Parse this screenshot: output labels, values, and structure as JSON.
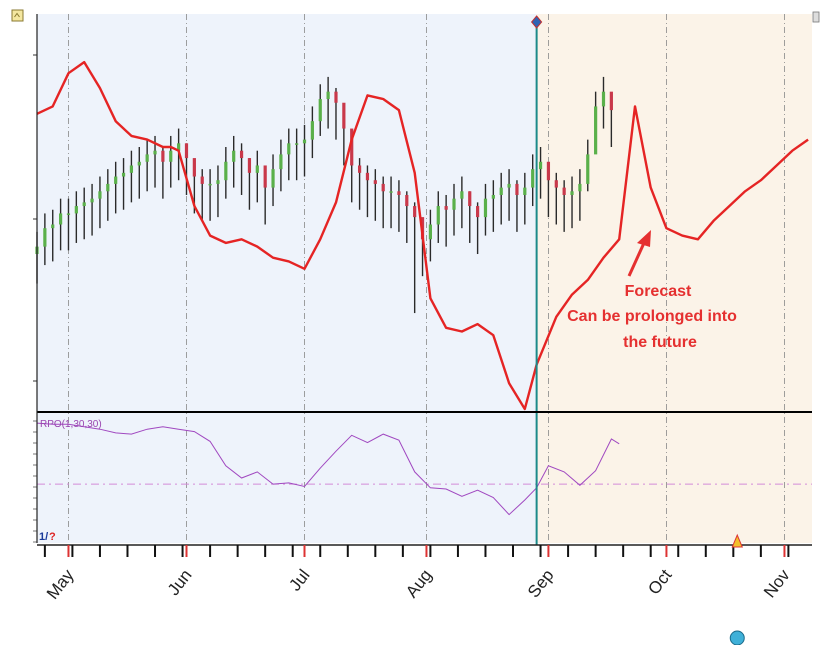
{
  "colors": {
    "history_bg": "#eef3fb",
    "forecast_bg": "#fbf3e8",
    "price_up": "#5ab04a",
    "price_down": "#c9384a",
    "forecast_line": "#e52424",
    "indicator_line": "#a048c0",
    "divider": "#1b8a8a",
    "annotation": "#e53030"
  },
  "annotation": {
    "line1": "Forecast",
    "line2": "Can be prolonged into",
    "line3": "the future"
  },
  "indicator": {
    "label": "RPO(1,30,30)",
    "status_left": "1/",
    "status_right": "?"
  },
  "chart_data": {
    "type": "line",
    "title": "",
    "xlabel": "",
    "ylabel": "",
    "x_unit": "day index (0 = first visible trading day, about Apr 20)",
    "month_labels": [
      "May",
      "Jun",
      "Jul",
      "Aug",
      "Sep",
      "Oct",
      "Nov"
    ],
    "month_positions": [
      8,
      38,
      68,
      99,
      130,
      160,
      190
    ],
    "xlim": [
      0,
      197
    ],
    "history_end": 127,
    "main_ylim": [
      0,
      100
    ],
    "price_bars": {
      "x": [
        0,
        2,
        4,
        6,
        8,
        10,
        12,
        14,
        16,
        18,
        20,
        22,
        24,
        26,
        28,
        30,
        32,
        34,
        36,
        38,
        40,
        42,
        44,
        46,
        48,
        50,
        52,
        54,
        56,
        58,
        60,
        62,
        64,
        66,
        68,
        70,
        72,
        74,
        76,
        78,
        80,
        82,
        84,
        86,
        88,
        90,
        92,
        94,
        96,
        98,
        100,
        102,
        104,
        106,
        108,
        110,
        112,
        114,
        116,
        118,
        120,
        122,
        124,
        126,
        128,
        130,
        132,
        134,
        136,
        138,
        140,
        142,
        144,
        146
      ],
      "close": [
        44,
        49,
        50,
        53,
        53,
        55,
        56,
        57,
        59,
        61,
        63,
        64,
        66,
        67,
        69,
        70,
        67,
        70,
        72,
        68,
        63,
        61,
        61,
        62,
        67,
        70,
        68,
        64,
        66,
        60,
        65,
        69,
        72,
        72,
        73,
        78,
        84,
        86,
        83,
        76,
        66,
        64,
        62,
        61,
        59,
        59,
        58,
        55,
        52,
        46,
        50,
        55,
        54,
        57,
        59,
        55,
        52,
        57,
        58,
        60,
        61,
        58,
        60,
        65,
        67,
        62,
        60,
        58,
        59,
        61,
        69,
        82,
        86,
        81
      ],
      "high": [
        48,
        53,
        54,
        57,
        57,
        59,
        60,
        61,
        63,
        65,
        67,
        68,
        70,
        71,
        73,
        74,
        71,
        74,
        76,
        72,
        67,
        65,
        65,
        66,
        71,
        74,
        72,
        68,
        70,
        64,
        69,
        73,
        76,
        76,
        77,
        82,
        88,
        90,
        87,
        80,
        70,
        68,
        66,
        65,
        63,
        63,
        62,
        59,
        56,
        50,
        54,
        59,
        58,
        61,
        63,
        59,
        56,
        61,
        62,
        64,
        65,
        62,
        64,
        69,
        71,
        66,
        64,
        62,
        63,
        65,
        73,
        86,
        90,
        85
      ],
      "low": [
        34,
        39,
        40,
        43,
        43,
        45,
        46,
        47,
        49,
        51,
        53,
        54,
        56,
        57,
        59,
        60,
        57,
        60,
        62,
        58,
        53,
        51,
        51,
        52,
        57,
        60,
        58,
        54,
        56,
        50,
        55,
        59,
        62,
        62,
        63,
        68,
        74,
        76,
        73,
        66,
        56,
        54,
        52,
        51,
        49,
        49,
        48,
        45,
        26,
        36,
        40,
        45,
        44,
        47,
        49,
        45,
        42,
        47,
        48,
        50,
        51,
        48,
        50,
        55,
        57,
        52,
        50,
        48,
        49,
        51,
        59,
        72,
        76,
        71
      ]
    },
    "series": [
      {
        "x": [
          0,
          4,
          8,
          12,
          16,
          20,
          24,
          28,
          32,
          34,
          36,
          40,
          44,
          48,
          52,
          56,
          60,
          64,
          68,
          72,
          76,
          80,
          84,
          88,
          92,
          96,
          100,
          104,
          108,
          112,
          116,
          120,
          124,
          127,
          132,
          136,
          140,
          144,
          148,
          152,
          156,
          160,
          164,
          168,
          172,
          176,
          180,
          184,
          188,
          192,
          196
        ],
        "values": [
          80,
          82,
          91,
          94,
          87,
          78,
          74,
          73,
          71,
          71,
          70,
          55,
          47,
          45,
          46,
          44,
          41,
          40,
          38,
          46,
          56,
          73,
          85,
          84,
          81,
          64,
          30,
          22,
          21,
          23,
          20,
          7,
          0,
          12,
          25,
          31,
          35,
          41,
          46,
          82,
          60,
          49,
          47,
          46,
          51,
          55,
          59,
          62,
          66,
          70,
          73
        ]
      },
      {
        "x": [
          0,
          4,
          8,
          12,
          16,
          20,
          24,
          28,
          32,
          36,
          40,
          44,
          48,
          52,
          56,
          60,
          64,
          68,
          72,
          76,
          80,
          84,
          88,
          92,
          96,
          100,
          104,
          108,
          112,
          116,
          120,
          124,
          127,
          130,
          134,
          138,
          142,
          146,
          148
        ],
        "values": [
          95,
          94,
          94,
          92,
          90,
          87,
          86,
          90,
          92,
          90,
          88,
          80,
          60,
          50,
          55,
          45,
          46,
          43,
          58,
          72,
          85,
          79,
          86,
          81,
          55,
          42,
          41,
          35,
          40,
          34,
          20,
          32,
          42,
          60,
          55,
          44,
          56,
          82,
          78
        ]
      }
    ],
    "indicator_ylim": [
      0,
      100
    ]
  }
}
